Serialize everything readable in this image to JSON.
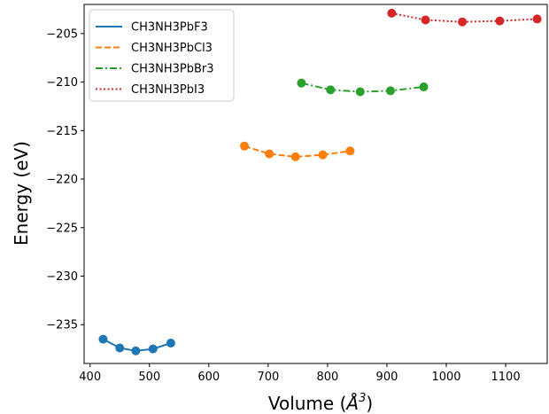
{
  "chart_data": {
    "type": "line",
    "title": "",
    "xlabel": "Volume ($\\AA^3$)",
    "xlabel_main": "Volume (",
    "xlabel_unit": "Å",
    "xlabel_sup": "3",
    "xlabel_end": ")",
    "ylabel": "Energy (eV)",
    "xlim": [
      390,
      1170
    ],
    "ylim": [
      -239,
      -202
    ],
    "xticks": [
      400,
      500,
      600,
      700,
      800,
      900,
      1000,
      1100
    ],
    "yticks": [
      -235,
      -230,
      -225,
      -220,
      -215,
      -210,
      -205
    ],
    "xtick_labels": [
      "400",
      "500",
      "600",
      "700",
      "800",
      "900",
      "1000",
      "1100"
    ],
    "ytick_labels": [
      "−235",
      "−230",
      "−225",
      "−220",
      "−215",
      "−210",
      "−205"
    ],
    "grid": false,
    "legend_position": "top-left",
    "series": [
      {
        "name": "CH3NH3PbF3",
        "color": "#1f77b4",
        "linestyle": "solid",
        "x": [
          422,
          450,
          477,
          506,
          536
        ],
        "y": [
          -236.5,
          -237.4,
          -237.7,
          -237.5,
          -236.9
        ]
      },
      {
        "name": "CH3NH3PbCl3",
        "color": "#ff7f0e",
        "linestyle": "dashed",
        "x": [
          660,
          702,
          746,
          792,
          838
        ],
        "y": [
          -216.6,
          -217.4,
          -217.7,
          -217.5,
          -217.1
        ]
      },
      {
        "name": "CH3NH3PbBr3",
        "color": "#2ca02c",
        "linestyle": "dashdot",
        "x": [
          756,
          805,
          855,
          906,
          962
        ],
        "y": [
          -210.1,
          -210.8,
          -211.0,
          -210.9,
          -210.5
        ]
      },
      {
        "name": "CH3NH3PbI3",
        "color": "#d62728",
        "linestyle": "dotted",
        "x": [
          908,
          965,
          1027,
          1090,
          1153
        ],
        "y": [
          -202.9,
          -203.6,
          -203.8,
          -203.7,
          -203.5
        ]
      }
    ]
  }
}
